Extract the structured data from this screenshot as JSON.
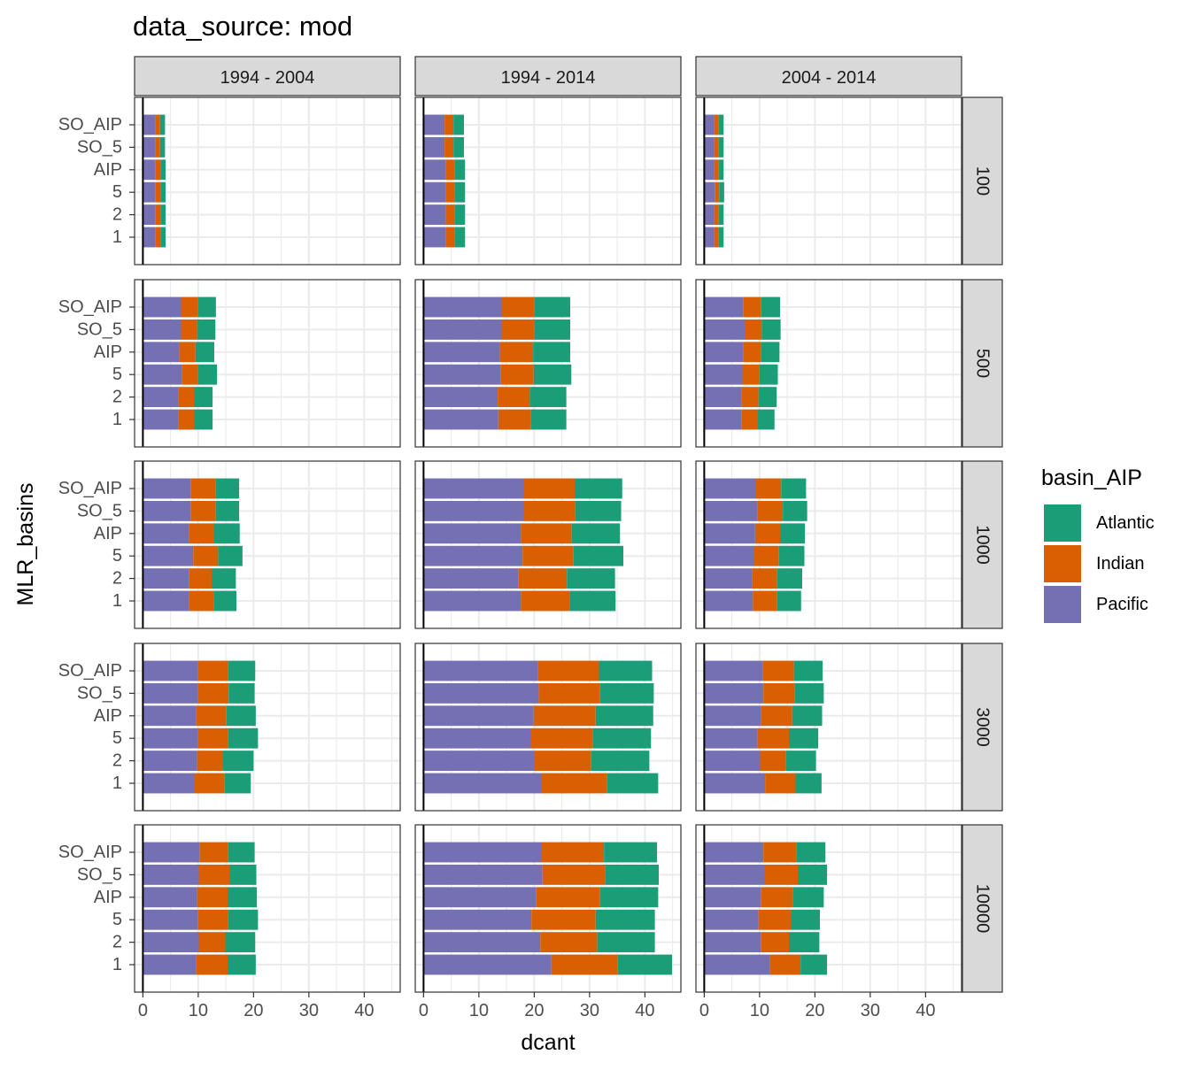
{
  "chart_data": {
    "type": "bar",
    "orientation": "horizontal",
    "stacked": true,
    "title": "data_source: mod",
    "xlabel": "dcant",
    "ylabel": "MLR_basins",
    "xlim": [
      -1.5,
      46.5
    ],
    "xticks": [
      0,
      10,
      20,
      30,
      40
    ],
    "categories": [
      "SO_AIP",
      "SO_5",
      "AIP",
      "5",
      "2",
      "1"
    ],
    "columns": [
      "1994 - 2004",
      "1994 - 2014",
      "2004 - 2014"
    ],
    "rows": [
      "100",
      "500",
      "1000",
      "3000",
      "10000"
    ],
    "legend": {
      "title": "basin_AIP",
      "position": "right",
      "entries": [
        {
          "name": "Atlantic",
          "color": "#1B9E77"
        },
        {
          "name": "Indian",
          "color": "#D95F02"
        },
        {
          "name": "Pacific",
          "color": "#7570B3"
        }
      ]
    },
    "stack_order": [
      "Pacific",
      "Indian",
      "Atlantic"
    ],
    "grid": true,
    "panels": [
      {
        "column": "1994 - 2004",
        "row": "100",
        "values": {
          "Pacific": [
            2.2,
            2.2,
            2.3,
            2.3,
            2.3,
            2.3
          ],
          "Indian": [
            0.9,
            0.9,
            0.9,
            0.9,
            0.9,
            0.9
          ],
          "Atlantic": [
            0.9,
            0.9,
            0.9,
            0.9,
            0.9,
            0.9
          ]
        }
      },
      {
        "column": "1994 - 2014",
        "row": "100",
        "values": {
          "Pacific": [
            3.8,
            3.8,
            4.0,
            4.0,
            4.0,
            4.0
          ],
          "Indian": [
            1.6,
            1.6,
            1.6,
            1.6,
            1.6,
            1.6
          ],
          "Atlantic": [
            1.9,
            1.9,
            1.9,
            1.9,
            1.9,
            1.9
          ]
        }
      },
      {
        "column": "2004 - 2014",
        "row": "100",
        "values": {
          "Pacific": [
            1.8,
            1.8,
            1.8,
            1.9,
            1.8,
            1.8
          ],
          "Indian": [
            0.8,
            0.8,
            0.8,
            0.8,
            0.8,
            0.8
          ],
          "Atlantic": [
            0.9,
            0.9,
            0.9,
            0.9,
            0.9,
            0.9
          ]
        }
      },
      {
        "column": "1994 - 2004",
        "row": "500",
        "values": {
          "Pacific": [
            6.9,
            6.9,
            6.6,
            7.0,
            6.4,
            6.4
          ],
          "Indian": [
            3.0,
            2.9,
            2.9,
            3.0,
            2.9,
            2.9
          ],
          "Atlantic": [
            3.3,
            3.3,
            3.4,
            3.4,
            3.3,
            3.3
          ]
        }
      },
      {
        "column": "1994 - 2014",
        "row": "500",
        "values": {
          "Pacific": [
            14.1,
            14.1,
            13.8,
            13.9,
            13.4,
            13.5
          ],
          "Indian": [
            5.9,
            5.9,
            6.0,
            6.0,
            5.8,
            5.9
          ],
          "Atlantic": [
            6.5,
            6.5,
            6.7,
            6.8,
            6.6,
            6.4
          ]
        }
      },
      {
        "column": "2004 - 2014",
        "row": "500",
        "values": {
          "Pacific": [
            7.1,
            7.3,
            7.0,
            6.9,
            6.8,
            6.7
          ],
          "Indian": [
            3.2,
            3.1,
            3.2,
            3.1,
            3.0,
            3.0
          ],
          "Atlantic": [
            3.4,
            3.4,
            3.4,
            3.3,
            3.3,
            3.0
          ]
        }
      },
      {
        "column": "1994 - 2004",
        "row": "1000",
        "values": {
          "Pacific": [
            8.7,
            8.7,
            8.4,
            9.1,
            8.3,
            8.4
          ],
          "Indian": [
            4.5,
            4.5,
            4.5,
            4.5,
            4.2,
            4.4
          ],
          "Atlantic": [
            4.2,
            4.2,
            4.6,
            4.4,
            4.3,
            4.1
          ]
        }
      },
      {
        "column": "1994 - 2014",
        "row": "1000",
        "values": {
          "Pacific": [
            18.1,
            18.1,
            17.6,
            17.9,
            17.1,
            17.6
          ],
          "Indian": [
            9.2,
            9.3,
            9.2,
            9.2,
            8.8,
            8.8
          ],
          "Atlantic": [
            8.6,
            8.3,
            8.7,
            9.0,
            8.7,
            8.3
          ]
        }
      },
      {
        "column": "2004 - 2014",
        "row": "1000",
        "values": {
          "Pacific": [
            9.3,
            9.6,
            9.2,
            8.9,
            8.6,
            8.8
          ],
          "Indian": [
            4.6,
            4.6,
            4.5,
            4.6,
            4.5,
            4.4
          ],
          "Atlantic": [
            4.5,
            4.4,
            4.5,
            4.6,
            4.6,
            4.3
          ]
        }
      },
      {
        "column": "1994 - 2004",
        "row": "3000",
        "values": {
          "Pacific": [
            10.0,
            10.0,
            9.6,
            10.0,
            9.8,
            9.3
          ],
          "Indian": [
            5.4,
            5.5,
            5.5,
            5.4,
            4.7,
            5.4
          ],
          "Atlantic": [
            4.9,
            4.7,
            5.3,
            5.4,
            5.5,
            4.8
          ]
        }
      },
      {
        "column": "1994 - 2014",
        "row": "3000",
        "values": {
          "Pacific": [
            20.6,
            20.8,
            19.9,
            19.3,
            20.1,
            21.3
          ],
          "Indian": [
            11.1,
            11.1,
            11.2,
            11.3,
            10.2,
            11.8
          ],
          "Atlantic": [
            9.6,
            9.7,
            10.4,
            10.5,
            10.5,
            9.3
          ]
        }
      },
      {
        "column": "2004 - 2014",
        "row": "3000",
        "values": {
          "Pacific": [
            10.6,
            10.7,
            10.2,
            9.6,
            10.1,
            11.0
          ],
          "Indian": [
            5.6,
            5.6,
            5.7,
            5.7,
            4.7,
            5.5
          ],
          "Atlantic": [
            5.2,
            5.3,
            5.4,
            5.3,
            5.4,
            4.7
          ]
        }
      },
      {
        "column": "1994 - 2004",
        "row": "10000",
        "values": {
          "Pacific": [
            10.3,
            10.1,
            9.8,
            9.9,
            10.1,
            9.6
          ],
          "Indian": [
            5.1,
            5.6,
            5.5,
            5.5,
            4.8,
            5.7
          ],
          "Atlantic": [
            4.8,
            4.8,
            5.3,
            5.4,
            5.4,
            5.1
          ]
        }
      },
      {
        "column": "1994 - 2014",
        "row": "10000",
        "values": {
          "Pacific": [
            21.3,
            21.5,
            20.3,
            19.5,
            21.1,
            23.1
          ],
          "Indian": [
            11.3,
            11.3,
            11.6,
            11.6,
            10.3,
            12.0
          ],
          "Atlantic": [
            9.6,
            9.7,
            10.5,
            10.7,
            10.4,
            9.8
          ]
        }
      },
      {
        "column": "2004 - 2014",
        "row": "10000",
        "values": {
          "Pacific": [
            10.7,
            10.9,
            10.3,
            9.8,
            10.3,
            11.8
          ],
          "Indian": [
            5.9,
            6.0,
            5.7,
            5.9,
            5.0,
            5.6
          ],
          "Atlantic": [
            5.3,
            5.3,
            5.6,
            5.2,
            5.5,
            4.8
          ]
        }
      }
    ]
  }
}
